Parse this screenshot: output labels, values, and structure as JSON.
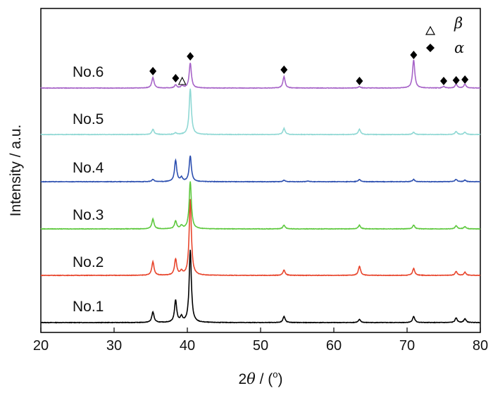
{
  "chart_data": {
    "type": "line",
    "xlabel_prefix": "2",
    "xlabel_theta": "θ",
    "xlabel_unit": " / (",
    "xlabel_deg": "o",
    "xlabel_close": ")",
    "ylabel": "Intensity / a.u.",
    "xlim": [
      20,
      80
    ],
    "xticks": [
      20,
      30,
      40,
      50,
      60,
      70,
      80
    ],
    "grid": false,
    "legend": [
      {
        "symbol": "triangle-open",
        "label": "β"
      },
      {
        "symbol": "diamond-filled",
        "label": "α"
      }
    ],
    "series": [
      {
        "name": "No.1",
        "color": "#000000",
        "peaks": [
          [
            35.3,
            0.14
          ],
          [
            38.4,
            0.29
          ],
          [
            39.2,
            0.07
          ],
          [
            40.4,
            0.95
          ],
          [
            53.2,
            0.08
          ],
          [
            63.5,
            0.04
          ],
          [
            70.9,
            0.08
          ],
          [
            76.7,
            0.06
          ],
          [
            77.9,
            0.05
          ]
        ]
      },
      {
        "name": "No.2",
        "color": "#e8452c",
        "peaks": [
          [
            35.3,
            0.18
          ],
          [
            38.4,
            0.21
          ],
          [
            39.2,
            0.05
          ],
          [
            40.4,
            1.0
          ],
          [
            53.2,
            0.07
          ],
          [
            63.5,
            0.12
          ],
          [
            70.9,
            0.09
          ],
          [
            76.7,
            0.05
          ],
          [
            77.9,
            0.04
          ]
        ]
      },
      {
        "name": "No.3",
        "color": "#5dc83d",
        "peaks": [
          [
            35.3,
            0.13
          ],
          [
            38.4,
            0.1
          ],
          [
            39.2,
            0.04
          ],
          [
            40.4,
            0.62
          ],
          [
            53.2,
            0.05
          ],
          [
            63.5,
            0.05
          ],
          [
            70.9,
            0.05
          ],
          [
            76.7,
            0.04
          ],
          [
            77.9,
            0.03
          ]
        ]
      },
      {
        "name": "No.4",
        "color": "#2c4fb0",
        "peaks": [
          [
            35.3,
            0.03
          ],
          [
            38.4,
            0.28
          ],
          [
            39.2,
            0.05
          ],
          [
            40.4,
            0.34
          ],
          [
            53.2,
            0.02
          ],
          [
            56.5,
            0.01
          ],
          [
            63.5,
            0.03
          ],
          [
            70.9,
            0.03
          ],
          [
            76.7,
            0.03
          ],
          [
            77.9,
            0.02
          ]
        ]
      },
      {
        "name": "No.5",
        "color": "#8fd8d4",
        "peaks": [
          [
            35.3,
            0.07
          ],
          [
            38.4,
            0.02
          ],
          [
            40.4,
            0.6
          ],
          [
            53.2,
            0.08
          ],
          [
            63.5,
            0.07
          ],
          [
            70.9,
            0.03
          ],
          [
            76.7,
            0.04
          ],
          [
            77.9,
            0.03
          ]
        ]
      },
      {
        "name": "No.6",
        "color": "#a764c8",
        "peaks": [
          [
            35.3,
            0.14
          ],
          [
            38.4,
            0.04
          ],
          [
            39.3,
            0.03
          ],
          [
            40.4,
            0.33
          ],
          [
            53.2,
            0.15
          ],
          [
            63.5,
            0.02
          ],
          [
            70.9,
            0.37
          ],
          [
            75.0,
            0.02
          ],
          [
            76.7,
            0.05
          ],
          [
            77.9,
            0.05
          ]
        ]
      }
    ],
    "markers": {
      "diamond_x": [
        35.3,
        38.4,
        40.4,
        53.2,
        63.5,
        70.9,
        75.0,
        76.7,
        77.9
      ],
      "triangle_x": [
        39.3
      ]
    }
  }
}
